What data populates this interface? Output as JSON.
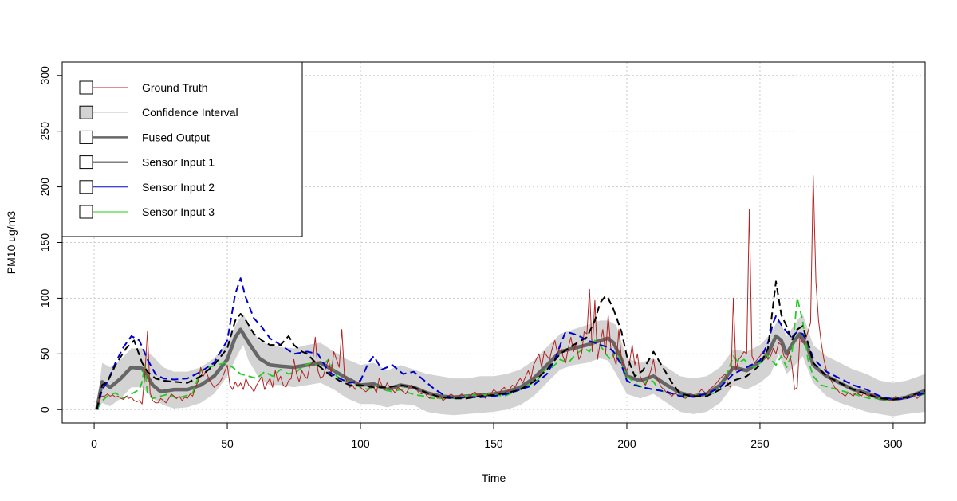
{
  "chart_data": {
    "type": "line",
    "title": "",
    "xlabel": "Time",
    "ylabel": "PM10 ug/m3",
    "xlim": [
      -12,
      312
    ],
    "ylim": [
      -12,
      312
    ],
    "x_ticks": [
      0,
      50,
      100,
      150,
      200,
      250,
      300
    ],
    "y_ticks": [
      0,
      50,
      100,
      150,
      200,
      250,
      300
    ],
    "grid": true,
    "legend_position": "top-left",
    "colors": {
      "ground_truth": "#b22222",
      "confidence": "#d3d3d3",
      "fused": "#666666",
      "sensor1": "#000000",
      "sensor2": "#0000cd",
      "sensor3": "#22cc22",
      "grid": "#cccccc"
    },
    "legend": [
      {
        "label": "Ground Truth",
        "key": "ground_truth"
      },
      {
        "label": "Confidence Interval",
        "key": "confidence"
      },
      {
        "label": "Fused Output",
        "key": "fused"
      },
      {
        "label": "Sensor Input 1",
        "key": "sensor1"
      },
      {
        "label": "Sensor Input 2",
        "key": "sensor2"
      },
      {
        "label": "Sensor Input 3",
        "key": "sensor3"
      }
    ],
    "series": [
      {
        "key": "fused",
        "name": "Fused Output",
        "x": [
          1,
          3,
          6,
          10,
          14,
          18,
          20,
          22,
          25,
          30,
          35,
          40,
          45,
          50,
          53,
          55,
          58,
          62,
          66,
          70,
          75,
          80,
          85,
          90,
          95,
          100,
          105,
          110,
          115,
          120,
          125,
          130,
          135,
          140,
          145,
          150,
          155,
          160,
          165,
          170,
          175,
          180,
          185,
          190,
          193,
          195,
          198,
          200,
          205,
          210,
          215,
          220,
          225,
          230,
          235,
          240,
          245,
          250,
          253,
          256,
          258,
          260,
          263,
          265,
          268,
          270,
          275,
          280,
          285,
          290,
          295,
          300,
          305,
          312
        ],
        "y": [
          0,
          25,
          20,
          28,
          38,
          37,
          30,
          22,
          16,
          18,
          18,
          22,
          30,
          45,
          65,
          72,
          60,
          46,
          40,
          39,
          38,
          40,
          42,
          35,
          28,
          22,
          23,
          18,
          22,
          20,
          15,
          12,
          11,
          12,
          13,
          14,
          16,
          20,
          28,
          40,
          52,
          55,
          58,
          62,
          64,
          60,
          45,
          30,
          26,
          30,
          22,
          15,
          12,
          14,
          22,
          38,
          35,
          43,
          50,
          66,
          62,
          50,
          62,
          68,
          55,
          40,
          30,
          24,
          18,
          15,
          10,
          9,
          11,
          17
        ]
      },
      {
        "key": "sensor1",
        "name": "Sensor Input 1",
        "x": [
          1,
          3,
          5,
          8,
          12,
          15,
          18,
          20,
          23,
          26,
          30,
          35,
          40,
          45,
          50,
          53,
          55,
          57,
          60,
          63,
          66,
          70,
          73,
          75,
          78,
          80,
          84,
          88,
          92,
          96,
          100,
          105,
          110,
          115,
          120,
          125,
          130,
          135,
          140,
          145,
          150,
          155,
          160,
          165,
          170,
          175,
          180,
          185,
          188,
          190,
          192,
          193,
          195,
          198,
          200,
          203,
          206,
          210,
          213,
          217,
          220,
          225,
          230,
          235,
          240,
          245,
          250,
          253,
          255,
          256,
          258,
          260,
          262,
          264,
          266,
          268,
          270,
          275,
          280,
          285,
          290,
          295,
          300,
          305,
          312
        ],
        "y": [
          0,
          22,
          25,
          40,
          55,
          62,
          42,
          34,
          28,
          26,
          25,
          24,
          30,
          40,
          55,
          80,
          86,
          80,
          68,
          62,
          58,
          58,
          66,
          58,
          52,
          50,
          40,
          32,
          26,
          22,
          22,
          20,
          20,
          22,
          20,
          15,
          11,
          10,
          10,
          12,
          13,
          15,
          18,
          25,
          36,
          50,
          58,
          65,
          80,
          96,
          102,
          100,
          90,
          70,
          48,
          30,
          35,
          52,
          40,
          24,
          14,
          12,
          12,
          18,
          26,
          30,
          40,
          55,
          95,
          115,
          85,
          75,
          62,
          72,
          75,
          60,
          42,
          30,
          24,
          18,
          14,
          10,
          9,
          11,
          17
        ]
      },
      {
        "key": "sensor2",
        "name": "Sensor Input 2",
        "x": [
          1,
          3,
          5,
          8,
          11,
          14,
          17,
          20,
          23,
          26,
          30,
          35,
          40,
          45,
          50,
          53,
          55,
          57,
          60,
          63,
          66,
          70,
          75,
          80,
          84,
          88,
          92,
          96,
          100,
          103,
          105,
          108,
          112,
          116,
          120,
          124,
          128,
          132,
          136,
          140,
          145,
          150,
          155,
          160,
          165,
          170,
          173,
          175,
          177,
          180,
          183,
          185,
          188,
          190,
          193,
          195,
          198,
          200,
          203,
          206,
          210,
          215,
          220,
          225,
          230,
          235,
          240,
          245,
          250,
          253,
          255,
          256,
          258,
          260,
          262,
          264,
          266,
          268,
          270,
          275,
          280,
          285,
          290,
          295,
          300,
          305,
          312
        ],
        "y": [
          0,
          18,
          25,
          42,
          56,
          66,
          62,
          45,
          32,
          28,
          27,
          28,
          34,
          42,
          62,
          104,
          118,
          100,
          82,
          74,
          64,
          58,
          50,
          52,
          50,
          34,
          28,
          24,
          26,
          42,
          48,
          36,
          40,
          32,
          34,
          26,
          18,
          12,
          10,
          11,
          11,
          12,
          14,
          18,
          22,
          32,
          45,
          58,
          70,
          68,
          65,
          62,
          60,
          58,
          56,
          52,
          40,
          26,
          22,
          20,
          18,
          16,
          12,
          12,
          14,
          20,
          32,
          38,
          44,
          60,
          78,
          84,
          76,
          70,
          65,
          70,
          68,
          60,
          46,
          34,
          28,
          22,
          18,
          12,
          9,
          10,
          15
        ]
      },
      {
        "key": "sensor3",
        "name": "Sensor Input 3",
        "x": [
          1,
          3,
          5,
          8,
          11,
          14,
          17,
          18,
          19,
          20,
          22,
          25,
          28,
          31,
          34,
          37,
          40,
          43,
          46,
          49,
          52,
          55,
          58,
          61,
          64,
          67,
          70,
          73,
          76,
          79,
          82,
          85,
          88,
          91,
          94,
          97,
          100,
          103,
          106,
          109,
          112,
          115,
          118,
          121,
          124,
          127,
          130,
          133,
          136,
          139,
          142,
          145,
          148,
          151,
          154,
          157,
          160,
          163,
          166,
          169,
          172,
          175,
          178,
          181,
          184,
          186,
          188,
          190,
          192,
          194,
          196,
          198,
          200,
          202,
          204,
          206,
          208,
          210,
          212,
          215,
          218,
          221,
          224,
          227,
          230,
          233,
          236,
          238,
          240,
          242,
          244,
          246,
          248,
          250,
          252,
          254,
          256,
          258,
          260,
          262,
          264,
          266,
          268,
          270,
          273,
          276,
          279,
          282,
          285,
          288,
          291,
          294,
          297,
          300,
          303,
          306,
          309,
          312
        ],
        "y": [
          0,
          8,
          12,
          15,
          10,
          14,
          18,
          25,
          40,
          14,
          10,
          12,
          14,
          10,
          12,
          15,
          35,
          38,
          40,
          42,
          38,
          32,
          30,
          28,
          34,
          30,
          36,
          32,
          34,
          40,
          42,
          38,
          45,
          30,
          26,
          24,
          20,
          18,
          22,
          18,
          16,
          18,
          15,
          13,
          12,
          10,
          10,
          11,
          10,
          12,
          13,
          12,
          14,
          13,
          12,
          15,
          18,
          22,
          25,
          35,
          38,
          45,
          42,
          50,
          55,
          52,
          62,
          58,
          50,
          45,
          52,
          42,
          30,
          26,
          22,
          20,
          28,
          25,
          18,
          15,
          14,
          12,
          12,
          14,
          13,
          15,
          22,
          35,
          48,
          42,
          45,
          40,
          38,
          42,
          50,
          45,
          40,
          48,
          38,
          50,
          100,
          80,
          45,
          30,
          22,
          20,
          18,
          16,
          14,
          12,
          10,
          10,
          9,
          8,
          10,
          12,
          12,
          14
        ]
      }
    ],
    "ground_truth": {
      "key": "ground_truth",
      "name": "Ground Truth",
      "x_start": 1,
      "x_step": 1,
      "y": [
        0,
        10,
        12,
        12,
        14,
        12,
        13,
        11,
        12,
        10,
        9,
        12,
        10,
        11,
        8,
        7,
        8,
        5,
        30,
        70,
        15,
        8,
        6,
        6,
        10,
        8,
        6,
        10,
        14,
        12,
        10,
        12,
        8,
        11,
        10,
        14,
        12,
        20,
        25,
        38,
        30,
        35,
        28,
        24,
        20,
        22,
        24,
        28,
        34,
        40,
        22,
        18,
        25,
        20,
        24,
        18,
        28,
        22,
        20,
        16,
        22,
        26,
        30,
        18,
        24,
        28,
        20,
        35,
        25,
        30,
        22,
        20,
        26,
        28,
        45,
        32,
        25,
        35,
        30,
        28,
        40,
        42,
        65,
        35,
        28,
        30,
        38,
        45,
        32,
        52,
        45,
        38,
        72,
        30,
        25,
        20,
        22,
        18,
        24,
        20,
        18,
        16,
        18,
        22,
        20,
        15,
        28,
        22,
        18,
        24,
        20,
        18,
        15,
        20,
        18,
        16,
        14,
        18,
        22,
        20,
        18,
        15,
        14,
        16,
        12,
        10,
        14,
        12,
        10,
        12,
        8,
        10,
        12,
        14,
        12,
        10,
        12,
        14,
        12,
        10,
        12,
        14,
        16,
        12,
        14,
        12,
        10,
        15,
        14,
        18,
        16,
        14,
        18,
        20,
        16,
        18,
        22,
        20,
        25,
        28,
        24,
        30,
        35,
        28,
        40,
        45,
        50,
        38,
        52,
        48,
        45,
        55,
        62,
        50,
        58,
        48,
        42,
        55,
        65,
        52,
        60,
        45,
        50,
        70,
        68,
        108,
        52,
        98,
        45,
        60,
        72,
        50,
        85,
        55,
        48,
        40,
        72,
        45,
        38,
        35,
        42,
        58,
        40,
        50,
        30,
        25,
        22,
        28,
        35,
        45,
        30,
        25,
        20,
        18,
        15,
        14,
        12,
        15,
        13,
        12,
        11,
        10,
        12,
        14,
        13,
        12,
        15,
        18,
        16,
        14,
        18,
        20,
        22,
        25,
        28,
        30,
        32,
        22,
        20,
        100,
        35,
        45,
        48,
        52,
        50,
        180,
        48,
        42,
        45,
        48,
        52,
        50,
        45,
        48,
        55,
        50,
        60,
        58,
        48,
        45,
        52,
        40,
        18,
        20,
        65,
        60,
        62,
        70,
        78,
        210,
        115,
        80,
        60,
        45,
        35,
        30,
        25,
        20,
        18,
        15,
        14,
        12,
        15,
        14,
        12,
        15,
        14,
        12,
        15,
        13,
        12,
        14,
        12,
        10,
        12,
        11,
        10,
        9,
        8,
        10,
        12,
        10,
        9,
        10,
        12,
        11,
        13,
        12,
        10,
        12,
        14,
        15,
        16,
        14,
        12,
        18,
        20,
        32,
        10,
        15
      ]
    },
    "confidence_band": {
      "x": [
        1,
        3,
        6,
        10,
        14,
        18,
        22,
        26,
        30,
        35,
        40,
        45,
        50,
        54,
        56,
        58,
        62,
        66,
        70,
        75,
        80,
        85,
        90,
        95,
        100,
        105,
        110,
        115,
        120,
        125,
        130,
        135,
        140,
        145,
        150,
        155,
        160,
        165,
        170,
        175,
        180,
        185,
        190,
        193,
        196,
        200,
        205,
        210,
        215,
        220,
        225,
        230,
        235,
        240,
        245,
        250,
        254,
        257,
        260,
        264,
        266,
        270,
        275,
        280,
        285,
        290,
        295,
        300,
        305,
        312
      ],
      "lower": [
        0,
        6,
        3,
        10,
        20,
        20,
        10,
        4,
        1,
        2,
        6,
        14,
        30,
        50,
        58,
        44,
        28,
        22,
        22,
        20,
        22,
        24,
        18,
        10,
        5,
        5,
        2,
        5,
        4,
        -2,
        -4,
        -5,
        -4,
        -3,
        -2,
        0,
        4,
        12,
        24,
        36,
        40,
        42,
        46,
        44,
        32,
        14,
        10,
        14,
        6,
        -2,
        -4,
        -2,
        6,
        22,
        18,
        24,
        32,
        50,
        32,
        42,
        48,
        24,
        12,
        6,
        2,
        -2,
        -4,
        -6,
        -4,
        -2
      ],
      "upper": [
        2,
        42,
        38,
        45,
        55,
        55,
        48,
        38,
        34,
        34,
        38,
        46,
        60,
        80,
        86,
        76,
        62,
        58,
        56,
        55,
        58,
        60,
        52,
        45,
        40,
        42,
        35,
        40,
        36,
        32,
        30,
        28,
        28,
        30,
        30,
        32,
        36,
        44,
        56,
        68,
        72,
        76,
        80,
        80,
        76,
        46,
        42,
        46,
        38,
        30,
        28,
        30,
        38,
        54,
        52,
        58,
        68,
        82,
        66,
        80,
        86,
        58,
        48,
        42,
        36,
        32,
        26,
        24,
        26,
        32
      ]
    }
  }
}
